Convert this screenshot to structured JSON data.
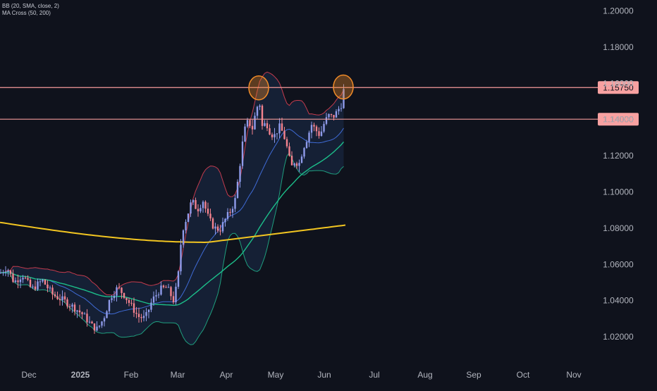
{
  "legend": {
    "bb": "BB (20, SMA, close, 2)",
    "ma_cross": "MA Cross (50, 200)"
  },
  "colors": {
    "background": "#0f121c",
    "bull_candle": "#8f9bea",
    "bear_candle": "#f4828e",
    "bb_basis": "#3f6bd6",
    "bb_upper": "#c43b4d",
    "bb_lower": "#1f9e7e",
    "bb_fill": "#16233a",
    "ma50": "#1cbf8a",
    "ma200": "#f2c521",
    "level_line": "#f49a9a",
    "level_label_bg": "#f8a1a1",
    "highlight_circle": "#f28c28"
  },
  "chart_data": {
    "type": "candlestick",
    "title": "",
    "x_tick_labels": [
      "Dec",
      "2025",
      "Feb",
      "Mar",
      "Apr",
      "May",
      "Jun",
      "Jul",
      "Aug",
      "Sep",
      "Oct",
      "Nov"
    ],
    "y_tick_labels": [
      "1.20000",
      "1.18000",
      "1.16000",
      "1.14000",
      "1.12000",
      "1.10000",
      "1.08000",
      "1.06000",
      "1.04000",
      "1.02000"
    ],
    "y_ticks": [
      1.2,
      1.18,
      1.16,
      1.14,
      1.12,
      1.1,
      1.08,
      1.06,
      1.04,
      1.02
    ],
    "ylim": [
      1.0085,
      1.2055
    ],
    "horizontal_levels": [
      {
        "value": 1.1575,
        "label": "1.15750"
      },
      {
        "value": 1.14,
        "label": "1.14000"
      }
    ],
    "highlighted_highs": [
      {
        "month": "Apr",
        "value": 1.1573
      },
      {
        "month": "Jun",
        "value": 1.1578
      }
    ],
    "approx_closes": [
      {
        "period": "late Nov 2024",
        "close": 1.055
      },
      {
        "period": "mid Dec 2024",
        "close": 1.047
      },
      {
        "period": "mid Jan 2025",
        "close": 1.025
      },
      {
        "period": "early Feb 2025",
        "close": 1.03
      },
      {
        "period": "early Mar 2025",
        "close": 1.083
      },
      {
        "period": "late Mar 2025",
        "close": 1.08
      },
      {
        "period": "mid Apr 2025",
        "close": 1.136
      },
      {
        "period": "early May 2025",
        "close": 1.128
      },
      {
        "period": "mid May 2025",
        "close": 1.118
      },
      {
        "period": "early Jun 2025",
        "close": 1.143
      },
      {
        "period": "mid Jun 2025",
        "close": 1.155
      }
    ],
    "ma200_range": [
      1.072,
      1.083
    ]
  }
}
